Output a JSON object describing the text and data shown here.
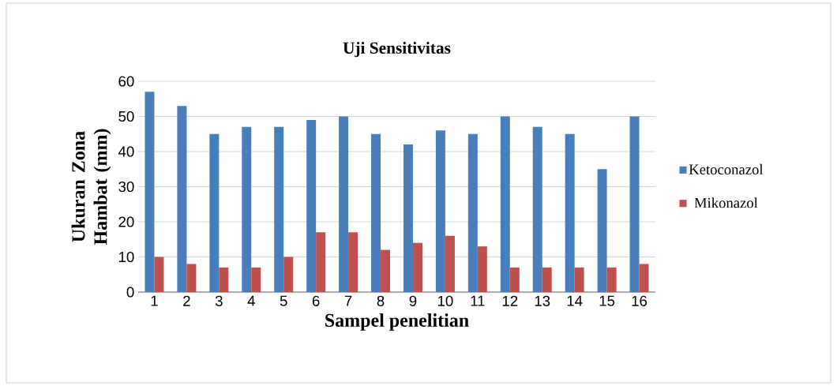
{
  "chart_data": {
    "type": "bar",
    "title": "Uji Sensitivitas",
    "xlabel": "Sampel penelitian",
    "ylabel": "Ukuran Zona Hambat (mm)",
    "categories": [
      "1",
      "2",
      "3",
      "4",
      "5",
      "6",
      "7",
      "8",
      "9",
      "10",
      "11",
      "12",
      "13",
      "14",
      "15",
      "16"
    ],
    "series": [
      {
        "name": "Ketoconazol",
        "color": "#4a7ebb",
        "values": [
          57,
          53,
          45,
          47,
          47,
          49,
          50,
          45,
          42,
          46,
          45,
          50,
          47,
          45,
          35,
          50
        ]
      },
      {
        "name": "Mikonazol",
        "color": "#c0504d",
        "values": [
          10,
          8,
          7,
          7,
          10,
          17,
          17,
          12,
          14,
          16,
          13,
          7,
          7,
          7,
          7,
          8
        ]
      }
    ],
    "ylim": [
      0,
      60
    ],
    "yticks": [
      0,
      10,
      20,
      30,
      40,
      50,
      60
    ],
    "grid": "y",
    "legend": "right"
  }
}
